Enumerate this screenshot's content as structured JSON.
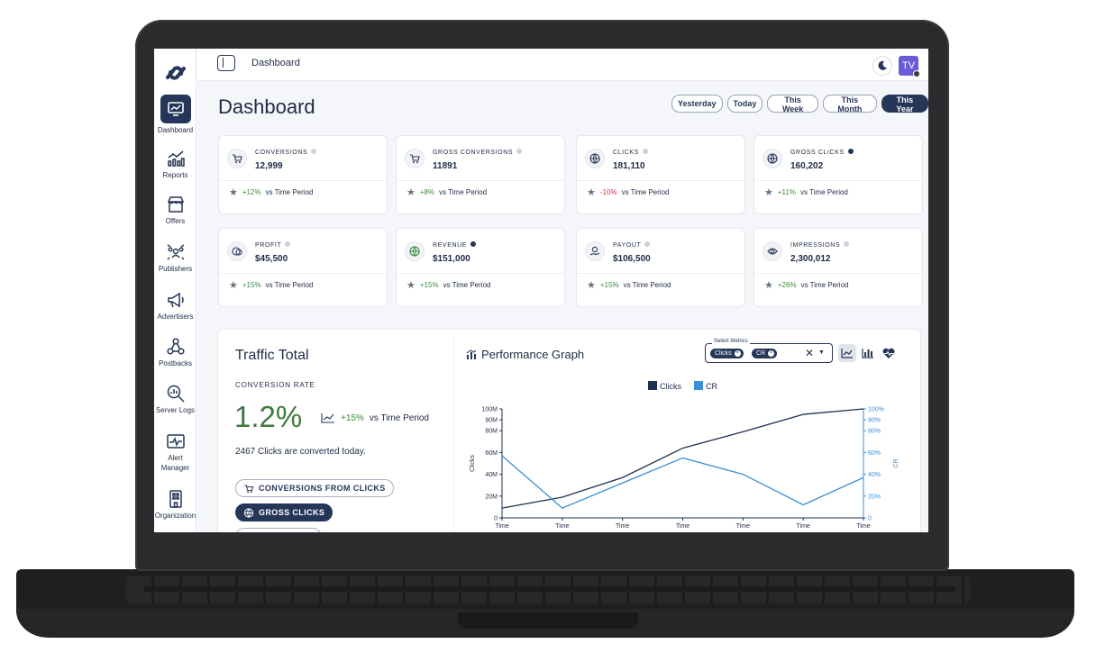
{
  "topbar": {
    "breadcrumb": "Dashboard",
    "avatar_initials": "TV"
  },
  "sidebar": {
    "items": [
      {
        "label": "Dashboard",
        "icon": "dashboard-icon",
        "active": true
      },
      {
        "label": "Reports",
        "icon": "reports-icon"
      },
      {
        "label": "Offers",
        "icon": "offers-icon"
      },
      {
        "label": "Publishers",
        "icon": "publishers-icon"
      },
      {
        "label": "Advertisers",
        "icon": "megaphone-icon"
      },
      {
        "label": "Postbacks",
        "icon": "postbacks-icon"
      },
      {
        "label": "Server Logs",
        "icon": "server-logs-icon"
      },
      {
        "label": "Alert",
        "label2": "Manager",
        "icon": "alert-manager-icon"
      },
      {
        "label": "Organization",
        "icon": "organization-icon"
      }
    ]
  },
  "header": {
    "title": "Dashboard",
    "periods": [
      "Yesterday",
      "Today",
      "This Week",
      "This Month",
      "This Year"
    ],
    "active_period": "This Year"
  },
  "cards": [
    {
      "label": "CONVERSIONS",
      "value": "12,999",
      "change": "+12%",
      "suffix": "vs  Time Period",
      "icon": "cart-icon"
    },
    {
      "label": "GROSS CONVERSIONS",
      "value": "11891",
      "change": "+8%",
      "suffix": "vs  Time Period",
      "icon": "cart-icon"
    },
    {
      "label": "CLICKS",
      "value": "181,110",
      "change": "-10%",
      "suffix": "vs  Time Period",
      "icon": "globe-icon"
    },
    {
      "label": "GROSS CLICKS",
      "value": "160,202",
      "change": "+11%",
      "suffix": "vs  Time Period",
      "icon": "globe-icon"
    },
    {
      "label": "PROFIT",
      "value": "$45,500",
      "change": "+15%",
      "suffix": "vs  Time Period",
      "icon": "profit-icon"
    },
    {
      "label": "REVENUE",
      "value": "$151,000",
      "change": "+15%",
      "suffix": "vs  Time Period",
      "icon": "revenue-globe-icon"
    },
    {
      "label": "PAYOUT",
      "value": "$106,500",
      "change": "+15%",
      "suffix": "vs  Time Period",
      "icon": "payout-icon"
    },
    {
      "label": "IMPRESSIONS",
      "value": "2,300,012",
      "change": "+26%",
      "suffix": "vs  Time Period",
      "icon": "eye-icon"
    }
  ],
  "traffic": {
    "title": "Traffic Total",
    "rate_label": "CONVERSION RATE",
    "rate_value": "1.2%",
    "rate_change": "+15%",
    "rate_suffix": "vs  Time Period",
    "note": "2467 Clicks are converted today.",
    "chips": [
      {
        "label": "CONVERSIONS FROM CLICKS",
        "active": false
      },
      {
        "label": "GROSS CLICKS",
        "active": true
      }
    ]
  },
  "graph": {
    "title": "Performance Graph",
    "select_label": "Select Metrics",
    "selected": [
      "Clicks",
      "CR"
    ]
  },
  "colors": {
    "primary": "#263659",
    "series_clicks": "#1f3052",
    "series_cr": "#3a8fd6",
    "positive": "#3c8a3c",
    "negative": "#d9363e"
  },
  "chart_data": {
    "type": "line",
    "x": [
      "Time",
      "Time",
      "Time",
      "Time",
      "Time",
      "Time",
      "Time"
    ],
    "series": [
      {
        "name": "Clicks",
        "axis": "left",
        "values": [
          9,
          19,
          37,
          64,
          79,
          95,
          100
        ]
      },
      {
        "name": "CR",
        "axis": "right",
        "values": [
          57,
          9,
          32,
          55,
          40,
          12,
          37
        ]
      }
    ],
    "yleft": {
      "label": "Clicks",
      "ticks": [
        "0",
        "20M",
        "40M",
        "60M",
        "80M",
        "90M",
        "100M"
      ],
      "tick_values": [
        0,
        20,
        40,
        60,
        80,
        90,
        100
      ],
      "range": [
        0,
        100
      ]
    },
    "yright": {
      "label": "CR",
      "ticks": [
        "0",
        "20%",
        "40%",
        "60%",
        "80%",
        "90%",
        "100%"
      ],
      "tick_values": [
        0,
        20,
        40,
        60,
        80,
        90,
        100
      ],
      "range": [
        0,
        100
      ]
    },
    "legend": "top-center",
    "grid": false
  }
}
